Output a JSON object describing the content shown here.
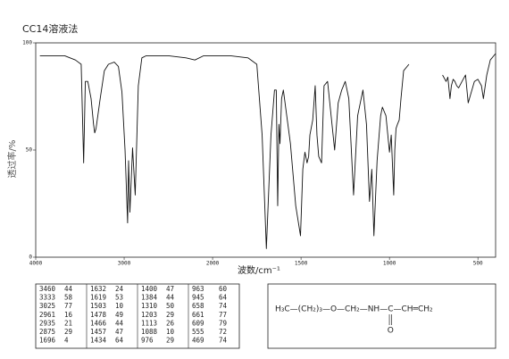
{
  "chart_data": {
    "type": "line",
    "title": "CC14溶液法",
    "x_label": "波数/cm⁻¹",
    "y_label": "透过率/%",
    "xlim": [
      4000,
      400
    ],
    "xticks": [
      4000,
      3000,
      2000,
      1500,
      1000,
      500
    ],
    "ylim": [
      0,
      100
    ],
    "yticks": [
      0,
      50,
      100
    ],
    "grid": false,
    "series": [
      {
        "color": "#111111",
        "x": [
          3953,
          3813,
          3673,
          3551,
          3486,
          3458,
          3439,
          3411,
          3374,
          3346,
          3333,
          3318,
          3271,
          3224,
          3178,
          3112,
          3065,
          3025,
          2990,
          2961,
          2950,
          2935,
          2905,
          2875,
          2840,
          2800,
          2750,
          2500,
          2300,
          2200,
          2100,
          2000,
          1900,
          1800,
          1750,
          1720,
          1696,
          1670,
          1650,
          1640,
          1632,
          1625,
          1619,
          1610,
          1600,
          1560,
          1530,
          1503,
          1490,
          1478,
          1466,
          1457,
          1450,
          1434,
          1420,
          1410,
          1400,
          1384,
          1370,
          1350,
          1330,
          1310,
          1290,
          1270,
          1250,
          1230,
          1203,
          1180,
          1150,
          1130,
          1113,
          1100,
          1088,
          1070,
          1050,
          1040,
          1020,
          1000,
          990,
          976,
          970,
          963,
          955,
          945,
          935,
          920,
          900,
          890,
          800,
          700,
          680,
          670,
          658,
          650,
          640,
          630,
          620,
          609,
          590,
          570,
          555,
          520,
          500,
          480,
          469,
          450,
          430,
          410,
          400
        ],
        "values": [
          94,
          94,
          94,
          92,
          90,
          44,
          82,
          82,
          74,
          62,
          58,
          60,
          74,
          87,
          90,
          91,
          89,
          77,
          50,
          16,
          45,
          21,
          51,
          29,
          80,
          93,
          94,
          94,
          93,
          92,
          94,
          94,
          94,
          93,
          90,
          57,
          4,
          57,
          78,
          78,
          24,
          62,
          53,
          74,
          78,
          53,
          24,
          10,
          41,
          49,
          44,
          47,
          57,
          64,
          80,
          57,
          47,
          44,
          80,
          82,
          66,
          50,
          72,
          78,
          82,
          74,
          29,
          66,
          78,
          62,
          26,
          41,
          10,
          45,
          66,
          70,
          66,
          49,
          57,
          29,
          50,
          60,
          62,
          64,
          74,
          87,
          89,
          90,
          null,
          85,
          82,
          84,
          74,
          80,
          83,
          82,
          80,
          79,
          82,
          85,
          72,
          82,
          83,
          80,
          74,
          85,
          92,
          94,
          95
        ]
      }
    ]
  },
  "peak_table": {
    "rows": [
      [
        3460,
        44,
        1632,
        24,
        1400,
        47,
        963,
        60
      ],
      [
        3333,
        58,
        1619,
        53,
        1384,
        44,
        945,
        64
      ],
      [
        3025,
        77,
        1503,
        10,
        1310,
        50,
        658,
        74
      ],
      [
        2961,
        16,
        1478,
        49,
        1203,
        29,
        661,
        77
      ],
      [
        2935,
        21,
        1466,
        44,
        1113,
        26,
        609,
        79
      ],
      [
        2875,
        29,
        1457,
        47,
        1088,
        10,
        555,
        72
      ],
      [
        1696,
        4,
        1434,
        64,
        976,
        29,
        469,
        74
      ]
    ]
  },
  "formula": {
    "left": "H₃C—(CH₂)₃—O—CH₂—NH—",
    "carbonyl": "C",
    "right": "—CH═CH₂",
    "oxygen": "O"
  }
}
